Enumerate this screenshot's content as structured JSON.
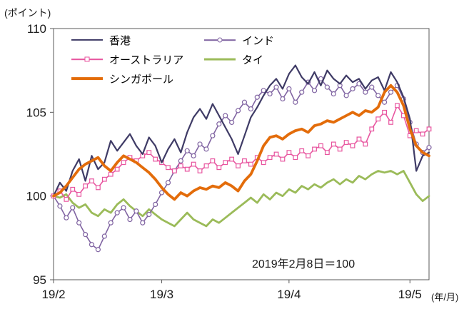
{
  "y_unit_label": "(ポイント)",
  "x_unit_label": "(年/月)",
  "annotation": "2019年2月8日＝100",
  "chart_data": {
    "type": "line",
    "title": "",
    "xlabel": "(年/月)",
    "ylabel": "(ポイント)",
    "note": "2019年2月8日＝100",
    "ylim": [
      95,
      110
    ],
    "yticks": [
      95,
      100,
      105,
      110
    ],
    "x_ticks": [
      {
        "label": "19/2",
        "index": 0
      },
      {
        "label": "19/3",
        "index": 17
      },
      {
        "label": "19/4",
        "index": 37
      },
      {
        "label": "19/5",
        "index": 56
      }
    ],
    "grid": false,
    "legend_position": "inside-top-left",
    "series": [
      {
        "name": "香港",
        "color": "#3F3B66",
        "marker": "none",
        "width": 2.2,
        "values": [
          100.0,
          100.8,
          100.3,
          101.5,
          102.2,
          100.9,
          102.4,
          101.6,
          102.0,
          103.3,
          102.7,
          103.2,
          103.7,
          103.0,
          102.5,
          103.5,
          103.0,
          102.0,
          102.8,
          103.4,
          102.6,
          103.8,
          104.7,
          105.2,
          104.6,
          105.5,
          104.8,
          104.1,
          103.4,
          102.5,
          103.6,
          104.7,
          105.3,
          106.0,
          106.6,
          107.0,
          106.4,
          107.3,
          107.8,
          107.1,
          106.7,
          107.4,
          106.6,
          107.5,
          107.0,
          106.7,
          107.2,
          106.8,
          107.0,
          106.4,
          106.9,
          107.1,
          106.3,
          107.4,
          106.8,
          105.9,
          104.6,
          101.5,
          102.4,
          102.6
        ]
      },
      {
        "name": "インド",
        "color": "#8064A2",
        "marker": "circle",
        "width": 1.6,
        "values": [
          100.0,
          99.4,
          98.7,
          99.3,
          98.4,
          97.7,
          97.1,
          96.8,
          97.6,
          98.4,
          99.0,
          99.3,
          98.6,
          99.1,
          98.4,
          98.9,
          99.5,
          100.2,
          100.8,
          101.5,
          102.1,
          102.7,
          102.4,
          103.1,
          102.8,
          103.6,
          104.3,
          104.8,
          104.4,
          105.1,
          105.6,
          105.2,
          105.9,
          106.3,
          106.1,
          106.5,
          105.8,
          106.4,
          105.6,
          106.2,
          106.8,
          106.3,
          107.0,
          106.5,
          106.1,
          106.6,
          106.0,
          106.4,
          106.7,
          106.2,
          106.5,
          106.0,
          105.6,
          106.2,
          106.6,
          105.8,
          104.4,
          103.1,
          102.6,
          102.9
        ]
      },
      {
        "name": "オーストラリア",
        "color": "#E8559F",
        "marker": "square",
        "width": 1.6,
        "values": [
          100.0,
          100.3,
          99.8,
          100.4,
          100.1,
          100.6,
          100.9,
          100.5,
          101.0,
          101.3,
          101.6,
          102.0,
          102.3,
          102.1,
          102.4,
          102.6,
          102.2,
          102.0,
          101.7,
          101.5,
          101.8,
          101.6,
          101.9,
          101.5,
          101.8,
          102.1,
          101.7,
          102.0,
          102.2,
          101.8,
          102.1,
          101.9,
          102.3,
          102.0,
          102.3,
          102.5,
          102.2,
          102.6,
          102.3,
          102.7,
          102.4,
          102.8,
          103.0,
          102.6,
          103.1,
          102.8,
          103.2,
          103.0,
          103.4,
          103.1,
          104.0,
          104.6,
          105.0,
          104.4,
          105.4,
          104.8,
          103.6,
          103.9,
          103.7,
          104.0
        ]
      },
      {
        "name": "タイ",
        "color": "#9BBB59",
        "marker": "none",
        "width": 2.8,
        "values": [
          100.0,
          99.9,
          100.1,
          99.6,
          99.3,
          99.5,
          99.0,
          98.8,
          99.2,
          99.0,
          99.5,
          99.8,
          99.4,
          99.1,
          98.8,
          99.2,
          98.9,
          98.6,
          98.4,
          98.2,
          98.6,
          99.0,
          98.6,
          98.4,
          98.2,
          98.6,
          98.4,
          98.7,
          99.0,
          99.3,
          99.6,
          99.9,
          99.6,
          100.1,
          99.8,
          100.2,
          100.0,
          100.4,
          100.2,
          100.6,
          100.4,
          100.7,
          100.5,
          100.8,
          101.0,
          100.7,
          101.0,
          100.8,
          101.2,
          101.0,
          101.3,
          101.5,
          101.4,
          101.5,
          101.3,
          101.5,
          100.8,
          100.1,
          99.7,
          100.0
        ]
      },
      {
        "name": "シンガポール",
        "color": "#E36C0A",
        "marker": "none",
        "width": 3.8,
        "values": [
          100.0,
          100.2,
          100.6,
          101.1,
          101.6,
          101.9,
          102.1,
          102.3,
          101.8,
          101.5,
          102.0,
          102.4,
          102.2,
          102.0,
          101.7,
          101.4,
          101.0,
          100.5,
          100.1,
          99.8,
          100.2,
          100.0,
          100.3,
          100.5,
          100.4,
          100.6,
          100.5,
          100.8,
          100.6,
          100.3,
          100.9,
          101.3,
          102.1,
          103.0,
          103.5,
          103.6,
          103.4,
          103.7,
          103.9,
          104.0,
          103.8,
          104.2,
          104.3,
          104.5,
          104.4,
          104.6,
          104.8,
          105.0,
          104.8,
          105.1,
          105.0,
          105.3,
          106.2,
          106.6,
          106.2,
          105.4,
          104.0,
          103.0,
          102.6,
          102.4
        ]
      }
    ]
  }
}
